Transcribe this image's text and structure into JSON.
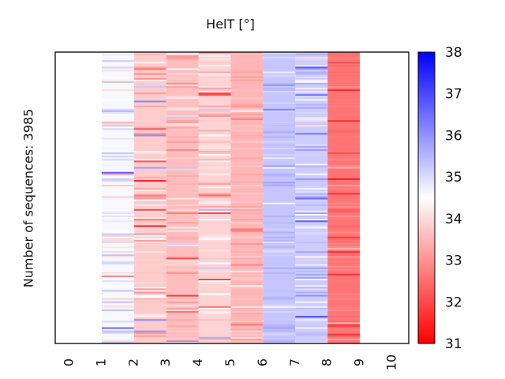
{
  "chart_data": {
    "type": "heatmap",
    "title": "HelT [°]",
    "xlabel": "",
    "ylabel": "Number of sequences: 3985",
    "n_sequences": 3985,
    "x_ticks": [
      "0",
      "1",
      "2",
      "3",
      "4",
      "5",
      "6",
      "7",
      "8",
      "9",
      "10"
    ],
    "xlim": [
      0,
      10
    ],
    "data_positions": [
      1,
      2,
      3,
      4,
      5,
      6,
      7,
      8
    ],
    "column_typical_values": [
      34.6,
      33.8,
      33.6,
      33.9,
      33.5,
      35.3,
      35.2,
      32.6
    ],
    "column_variability": [
      0.8,
      0.8,
      0.6,
      0.7,
      0.3,
      0.3,
      0.6,
      0.4
    ],
    "colorbar": {
      "min": 31,
      "max": 38,
      "ticks": [
        "31",
        "32",
        "33",
        "34",
        "35",
        "36",
        "37",
        "38"
      ],
      "low_color": "#ff0000",
      "mid_color": "#ffffff",
      "high_color": "#0000ff",
      "mid_value": 34.5
    },
    "grid": false,
    "legend": "colorbar-right"
  }
}
